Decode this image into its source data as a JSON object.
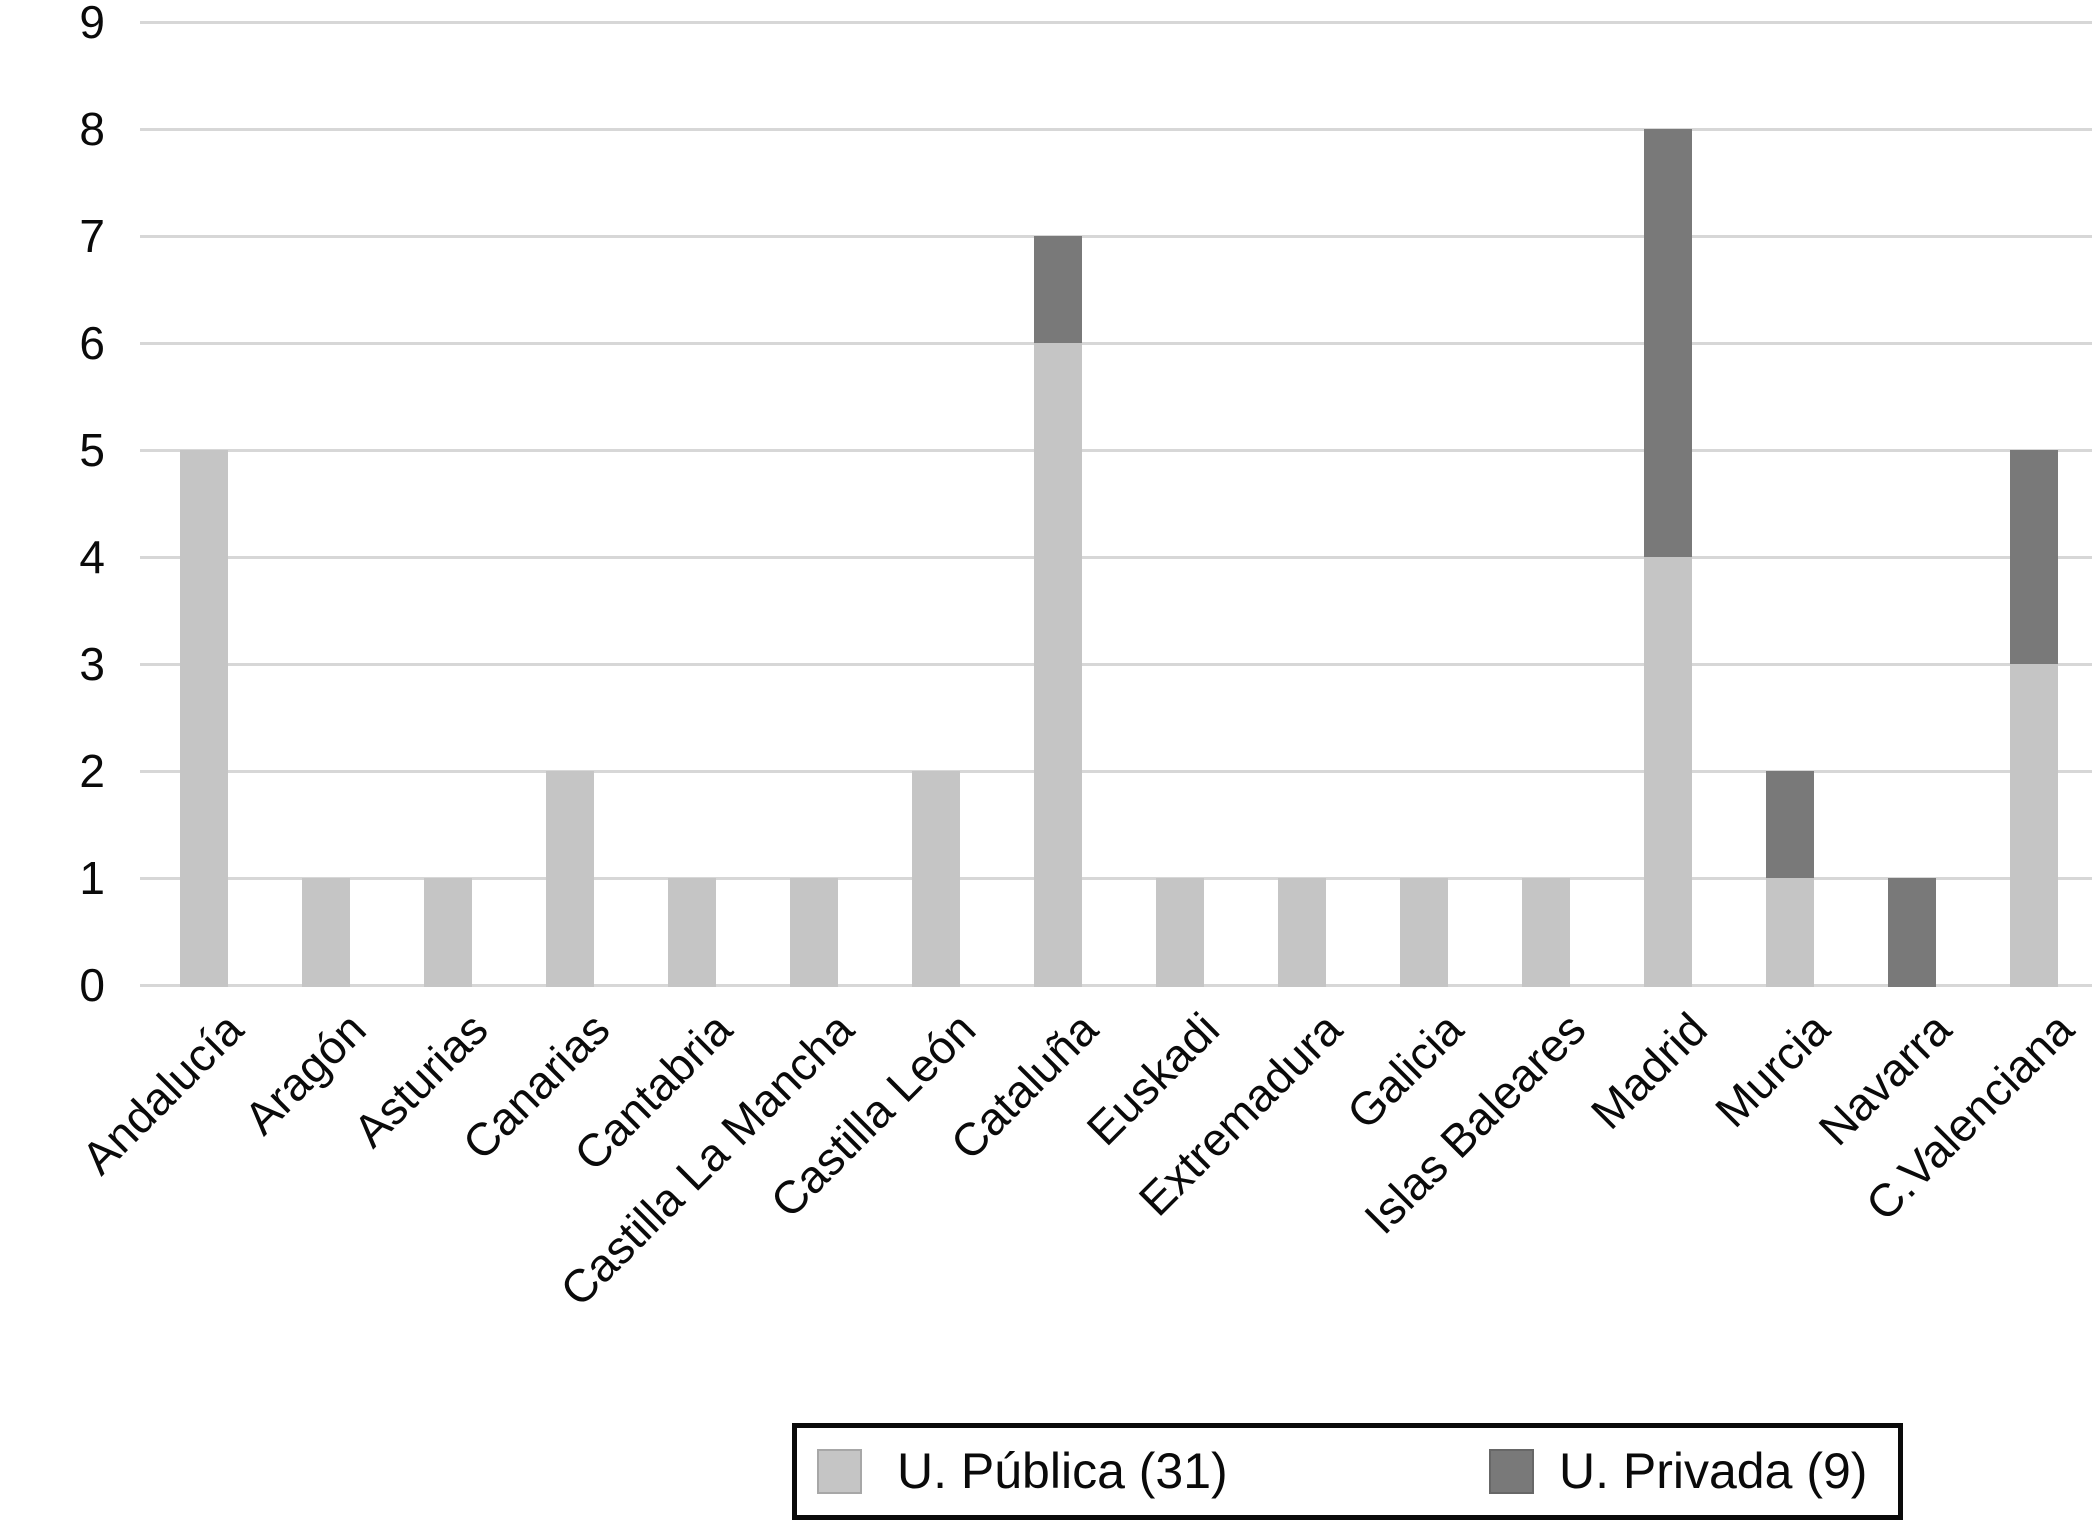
{
  "chart_data": {
    "type": "bar",
    "stacked": true,
    "title": "",
    "xlabel": "",
    "ylabel": "",
    "ylim": [
      0,
      9
    ],
    "y_ticks": [
      0,
      1,
      2,
      3,
      4,
      5,
      6,
      7,
      8,
      9
    ],
    "grid": true,
    "legend_position": "bottom",
    "categories": [
      "Andalucía",
      "Aragón",
      "Asturias",
      "Canarias",
      "Cantabria",
      "Castilla La Mancha",
      "Castilla León",
      "Cataluña",
      "Euskadi",
      "Extremadura",
      "Galicia",
      "Islas Baleares",
      "Madrid",
      "Murcia",
      "Navarra",
      "C.Valenciana"
    ],
    "series": [
      {
        "name": "U. Pública (31)",
        "color": "#c5c5c5",
        "values": [
          5,
          1,
          1,
          2,
          1,
          1,
          2,
          6,
          1,
          1,
          1,
          1,
          4,
          1,
          0,
          3
        ]
      },
      {
        "name": "U. Privada (9)",
        "color": "#797979",
        "values": [
          0,
          0,
          0,
          0,
          0,
          0,
          0,
          1,
          0,
          0,
          0,
          0,
          4,
          1,
          1,
          2
        ]
      }
    ]
  },
  "legend": {
    "publica_label": "U. Pública (31)",
    "privada_label": "U. Privada (9)"
  },
  "colors": {
    "publica": "#c5c5c5",
    "privada": "#797979",
    "gridline": "#d7d7d7",
    "legend_border": "#0a0a0a",
    "text": "#0a0a0a"
  }
}
